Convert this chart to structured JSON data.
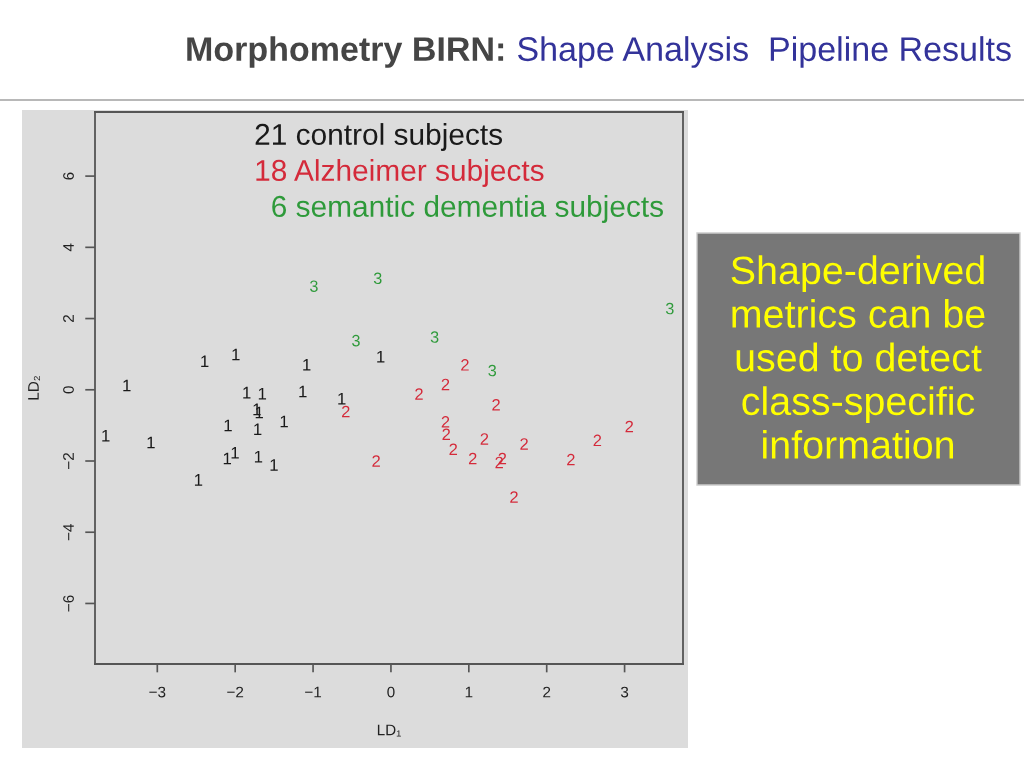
{
  "chart_data": {
    "type": "scatter",
    "title": "Morphometry BIRN:",
    "subtitle": "Shape Analysis  Pipeline Results",
    "xlabel": "LD₁",
    "ylabel": "LD₂",
    "xlim": [
      -3.8,
      3.75
    ],
    "ylim": [
      -7.7,
      7.8
    ],
    "xticks": [
      -3,
      -2,
      -1,
      0,
      1,
      2,
      3
    ],
    "yticks": [
      -6,
      -4,
      -2,
      0,
      2,
      4,
      6
    ],
    "grid": false,
    "annotations": [
      "Shape-derived\nmetrics can be\nused to detect\nclass-specific\ninformation"
    ],
    "series": [
      {
        "name": "21 control subjects",
        "color": "#1a1a1a",
        "x": [
          -2.39,
          -1.99,
          -1.08,
          -0.13,
          -3.39,
          -1.85,
          -1.65,
          -1.13,
          -0.63,
          -1.72,
          -1.69,
          -1.37,
          -2.09,
          -1.71,
          -3.66,
          -3.08,
          -2.1,
          -2.0,
          -1.7,
          -1.5,
          -2.47
        ],
        "values": [
          0.8,
          0.99,
          0.7,
          0.93,
          0.12,
          -0.08,
          -0.11,
          -0.05,
          -0.25,
          -0.55,
          -0.64,
          -0.89,
          -1.0,
          -1.11,
          -1.29,
          -1.48,
          -1.93,
          -1.77,
          -1.88,
          -2.11,
          -2.53
        ]
      },
      {
        "name": "18 Alzheimer subjects",
        "color": "#d42a3a",
        "x": [
          0.95,
          0.7,
          0.36,
          1.35,
          0.7,
          0.71,
          0.8,
          1.2,
          1.71,
          1.05,
          1.43,
          1.39,
          2.31,
          2.65,
          3.06,
          1.58,
          -0.58,
          -0.19
        ],
        "values": [
          0.7,
          0.15,
          -0.12,
          -0.42,
          -0.9,
          -1.25,
          -1.67,
          -1.38,
          -1.52,
          -1.93,
          -1.93,
          -2.04,
          -1.96,
          -1.42,
          -1.03,
          -3.01,
          -0.61,
          -2.0
        ]
      },
      {
        "name": "  6 semantic dementia subjects",
        "color": "#2e9a3a",
        "x": [
          -0.99,
          -0.17,
          3.58,
          0.56,
          1.3,
          -0.45
        ],
        "values": [
          2.91,
          3.13,
          2.28,
          1.48,
          0.54,
          1.38
        ]
      }
    ]
  }
}
